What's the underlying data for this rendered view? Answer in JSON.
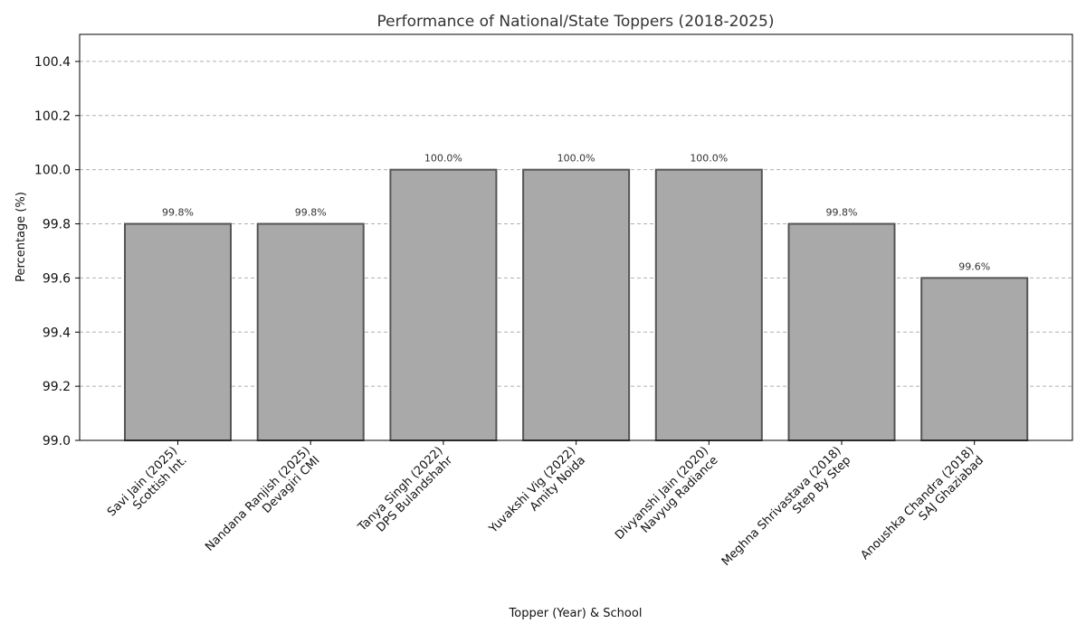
{
  "chart_data": {
    "type": "bar",
    "title": "Performance of National/State Toppers (2018-2025)",
    "xlabel": "Topper (Year) & School",
    "ylabel": "Percentage (%)",
    "ylim": [
      99.0,
      100.5
    ],
    "yticks": [
      "99.0",
      "99.2",
      "99.4",
      "99.6",
      "99.8",
      "100.0",
      "100.2",
      "100.4"
    ],
    "grid": "y-dashed",
    "categories": [
      [
        "Savi Jain (2025)",
        "Scottish Int."
      ],
      [
        "Nandana Ranjish (2025)",
        "Devagiri CMI"
      ],
      [
        "Tanya Singh (2022)",
        "DPS Bulandshahr"
      ],
      [
        "Yuvakshi Vig (2022)",
        "Amity Noida"
      ],
      [
        "Divyanshi Jain (2020)",
        "Navyug Radiance"
      ],
      [
        "Meghna Shrivastava (2018)",
        "Step By Step"
      ],
      [
        "Anoushka Chandra (2018)",
        "SAJ Ghaziabad"
      ]
    ],
    "values": [
      99.8,
      99.8,
      100.0,
      100.0,
      100.0,
      99.8,
      99.6
    ],
    "data_labels": [
      "99.8%",
      "99.8%",
      "100.0%",
      "100.0%",
      "100.0%",
      "99.8%",
      "99.6%"
    ],
    "colors": {
      "bar_fill": "#a9a9a9",
      "bar_edge": "#555555"
    }
  }
}
